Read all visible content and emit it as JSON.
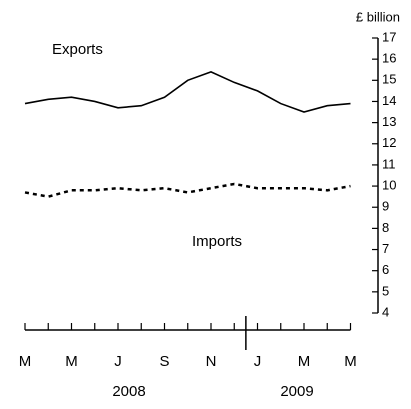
{
  "chart_data": {
    "type": "line",
    "y_label": "£ billion",
    "annotations": [
      "Exports",
      "Imports"
    ],
    "categories": [
      "M",
      null,
      "M",
      null,
      "J",
      null,
      "S",
      null,
      "N",
      null,
      "J",
      null,
      "M",
      null,
      "M"
    ],
    "year_labels": [
      "2008",
      "2009"
    ],
    "series": [
      {
        "name": "Exports",
        "color": "#000000",
        "dash": "solid",
        "values": [
          13.9,
          14.1,
          14.2,
          14.0,
          13.7,
          13.8,
          14.2,
          15.0,
          15.4,
          14.9,
          14.5,
          13.9,
          13.5,
          13.8,
          13.9
        ]
      },
      {
        "name": "Imports",
        "color": "#000000",
        "dash": "dotted",
        "values": [
          9.7,
          9.5,
          9.8,
          9.8,
          9.9,
          9.8,
          9.9,
          9.7,
          9.9,
          10.1,
          9.9,
          9.9,
          9.9,
          9.8,
          10.0
        ]
      }
    ],
    "ylim": [
      4,
      17
    ],
    "yticks": [
      4,
      5,
      6,
      7,
      8,
      9,
      10,
      11,
      12,
      13,
      14,
      15,
      16,
      17
    ],
    "grid": false
  }
}
